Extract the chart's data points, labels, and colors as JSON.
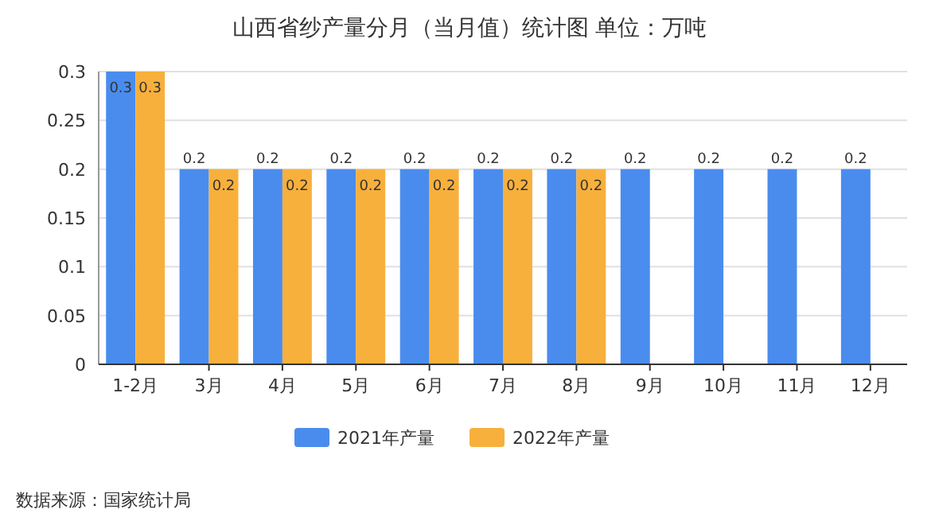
{
  "chart_data": {
    "type": "bar",
    "title": "山西省纱产量分月（当月值）统计图 单位：万吨",
    "categories": [
      "1-2月",
      "3月",
      "4月",
      "5月",
      "6月",
      "7月",
      "8月",
      "9月",
      "10月",
      "11月",
      "12月"
    ],
    "series": [
      {
        "name": "2021年产量",
        "color": "#4a8cee",
        "values": [
          0.3,
          0.2,
          0.2,
          0.2,
          0.2,
          0.2,
          0.2,
          0.2,
          0.2,
          0.2,
          0.2
        ]
      },
      {
        "name": "2022年产量",
        "color": "#f8b03c",
        "values": [
          0.3,
          0.2,
          0.2,
          0.2,
          0.2,
          0.2,
          0.2,
          null,
          null,
          null,
          null
        ]
      }
    ],
    "ylim": [
      0,
      0.3
    ],
    "yticks": [
      0,
      0.05,
      0.1,
      0.15,
      0.2,
      0.25,
      0.3
    ],
    "grid": "y",
    "legend": "bottom",
    "data_labels": true,
    "annotations": [
      "数据来源：国家统计局"
    ]
  }
}
